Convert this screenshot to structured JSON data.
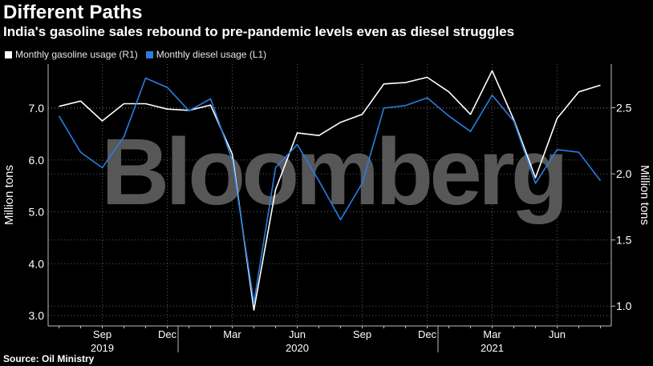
{
  "title": "Different Paths",
  "subtitle": "India's gasoline sales rebound to pre-pandemic levels even as diesel struggles",
  "source": "Source: Oil Ministry",
  "watermark": "Bloomberg",
  "colors": {
    "background": "#000000",
    "gasoline": "#ffffff",
    "diesel": "#2a7de1",
    "grid": "#5a5a5a",
    "axis": "#bdbdbd"
  },
  "chart_data": {
    "type": "line",
    "x": [
      "2019-07",
      "2019-08",
      "2019-09",
      "2019-10",
      "2019-11",
      "2019-12",
      "2020-01",
      "2020-02",
      "2020-03",
      "2020-04",
      "2020-05",
      "2020-06",
      "2020-07",
      "2020-08",
      "2020-09",
      "2020-10",
      "2020-11",
      "2020-12",
      "2021-01",
      "2021-02",
      "2021-03",
      "2021-04",
      "2021-05",
      "2021-06",
      "2021-07",
      "2021-08"
    ],
    "series": [
      {
        "name": "Monthly gasoline usage (R1)",
        "axis": "right",
        "values": [
          2.51,
          2.55,
          2.4,
          2.53,
          2.53,
          2.49,
          2.48,
          2.52,
          2.15,
          0.97,
          1.88,
          2.31,
          2.29,
          2.39,
          2.45,
          2.68,
          2.69,
          2.73,
          2.62,
          2.45,
          2.78,
          2.41,
          1.97,
          2.42,
          2.62,
          2.67
        ]
      },
      {
        "name": "Monthly diesel usage (L1)",
        "axis": "left",
        "values": [
          6.85,
          6.15,
          5.85,
          6.45,
          7.58,
          7.4,
          6.95,
          7.18,
          6.0,
          3.25,
          5.85,
          6.3,
          5.6,
          4.85,
          5.55,
          7.0,
          7.05,
          7.2,
          6.85,
          6.55,
          7.25,
          6.75,
          5.55,
          6.2,
          6.15,
          5.6
        ]
      }
    ],
    "ylabel_left": "Million tons",
    "ylabel_right": "Million tons",
    "ylim_left": [
      2.8,
      7.85
    ],
    "ylim_right": [
      0.85,
      2.83
    ],
    "yticks_left": [
      "3.0",
      "4.0",
      "5.0",
      "6.0",
      "7.0"
    ],
    "yticks_right": [
      "1.0",
      "1.5",
      "2.0",
      "2.5"
    ],
    "xticks_month": [
      {
        "label": "Sep",
        "index": 2
      },
      {
        "label": "Dec",
        "index": 5
      },
      {
        "label": "Mar",
        "index": 8
      },
      {
        "label": "Jun",
        "index": 11
      },
      {
        "label": "Sep",
        "index": 14
      },
      {
        "label": "Dec",
        "index": 17
      },
      {
        "label": "Mar",
        "index": 20
      },
      {
        "label": "Jun",
        "index": 23
      }
    ],
    "xticks_year": [
      {
        "label": "2019",
        "index": 2
      },
      {
        "label": "2020",
        "index": 11
      },
      {
        "label": "2021",
        "index": 20
      }
    ],
    "grid": true,
    "legend": "top-left"
  }
}
